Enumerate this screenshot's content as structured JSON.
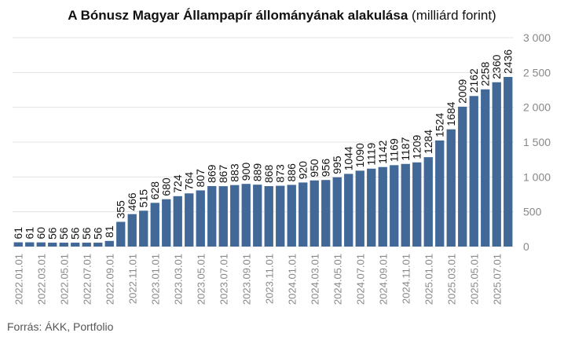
{
  "header": {
    "title": "A Bónusz Magyar Állampapír állományának alakulása",
    "subtitle": "(milliárd forint)"
  },
  "footer": {
    "source": "Forrás: ÁKK, Portfolio"
  },
  "colors": {
    "bar": "#416896",
    "grid": "#e3e3e3",
    "axis_text": "#888888",
    "label_text": "#111111"
  },
  "chart_data": {
    "type": "bar",
    "title": "A Bónusz Magyar Állampapír állományának alakulása",
    "subtitle": "(milliárd forint)",
    "ylim": [
      0,
      3000
    ],
    "yticks": [
      0,
      500,
      1000,
      1500,
      2000,
      2500,
      3000
    ],
    "ytick_labels": [
      "0",
      "500",
      "1 000",
      "1 500",
      "2 000",
      "2 500",
      "3 000"
    ],
    "y_axis_position": "right",
    "grid": true,
    "categories": [
      "2022.01.01",
      "2022.02.01",
      "2022.03.01",
      "2022.04.01",
      "2022.05.01",
      "2022.06.01",
      "2022.07.01",
      "2022.08.01",
      "2022.09.01",
      "2022.10.01",
      "2022.11.01",
      "2022.12.01",
      "2023.01.01",
      "2023.02.01",
      "2023.03.01",
      "2023.04.01",
      "2023.05.01",
      "2023.06.01",
      "2023.07.01",
      "2023.08.01",
      "2023.09.01",
      "2023.10.01",
      "2023.11.01",
      "2023.12.01",
      "2024.01.01",
      "2024.02.01",
      "2024.03.01",
      "2024.04.01",
      "2024.05.01",
      "2024.06.01",
      "2024.07.01",
      "2024.08.01",
      "2024.09.01",
      "2024.10.01",
      "2024.11.01",
      "2024.12.01",
      "2025.01.01",
      "2025.02.01",
      "2025.03.01",
      "2025.04.01",
      "2025.05.01",
      "2025.06.01",
      "2025.07.01",
      "2025.08.01"
    ],
    "xtick_labels": [
      "2022.01.01",
      "2022.03.01",
      "2022.05.01",
      "2022.07.01",
      "2022.09.01",
      "2022.11.01",
      "2023.01.01",
      "2023.03.01",
      "2023.05.01",
      "2023.07.01",
      "2023.09.01",
      "2023.11.01",
      "2024.01.01",
      "2024.03.01",
      "2024.05.01",
      "2024.07.01",
      "2024.09.01",
      "2024.11.01",
      "2025.01.01",
      "2025.03.01",
      "2025.05.01",
      "2025.07.01"
    ],
    "values": [
      61,
      61,
      60,
      56,
      56,
      56,
      56,
      56,
      81,
      355,
      466,
      515,
      628,
      680,
      724,
      764,
      807,
      869,
      867,
      883,
      900,
      889,
      868,
      873,
      886,
      920,
      950,
      956,
      995,
      1044,
      1090,
      1119,
      1142,
      1169,
      1187,
      1209,
      1284,
      1524,
      1684,
      2009,
      2162,
      2258,
      2360,
      2436
    ]
  }
}
